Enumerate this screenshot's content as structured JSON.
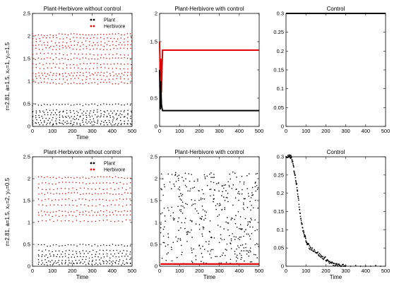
{
  "row_labels": [
    "r=2.81, a=1.5, x₀=1, y₀=1.5",
    "r=2.81, a=1.5, x₀=2, y₀=0.5"
  ],
  "colors": {
    "plant": "#000000",
    "herbivore": "#e00000",
    "axis": "#000000"
  },
  "chart_data": [
    {
      "type": "scatter",
      "title": "Plant-Herbivore without control",
      "xlabel": "Time",
      "xlim": [
        0,
        500
      ],
      "ylim": [
        0,
        2.5
      ],
      "xticks": [
        0,
        100,
        200,
        300,
        400,
        500
      ],
      "yticks": [
        0,
        0.5,
        1,
        1.5,
        2,
        2.5
      ],
      "legend": {
        "position": "top-right",
        "entries": [
          "Plant",
          "Herbivore"
        ]
      },
      "series": [
        {
          "name": "Plant",
          "color": "#000000",
          "pattern": "bands",
          "levels": [
            0.48,
            0.35,
            0.3,
            0.24,
            0.19,
            0.13,
            0.08,
            0.05
          ],
          "x_range": [
            0,
            500
          ]
        },
        {
          "name": "Herbivore",
          "color": "#e00000",
          "pattern": "bands",
          "levels": [
            2.03,
            1.95,
            1.87,
            1.79,
            1.72,
            1.6,
            1.5,
            1.38,
            1.29,
            1.18,
            1.12,
            1.05,
            0.96
          ],
          "x_range": [
            0,
            500
          ]
        }
      ]
    },
    {
      "type": "line",
      "title": "Plant-Herbivore with control",
      "xlabel": "",
      "xlim": [
        0,
        500
      ],
      "ylim": [
        0,
        2
      ],
      "xticks": [
        0,
        100,
        200,
        300,
        400,
        500
      ],
      "yticks": [
        0,
        0.5,
        1,
        1.5,
        2
      ],
      "series": [
        {
          "color": "#e00000",
          "x": [
            0,
            3,
            6,
            9,
            12,
            15,
            500
          ],
          "y": [
            1.5,
            0.9,
            1.2,
            0.6,
            1.0,
            1.35,
            1.35
          ]
        },
        {
          "color": "#000000",
          "x": [
            0,
            3,
            6,
            9,
            12,
            15,
            500
          ],
          "y": [
            1.0,
            0.3,
            0.8,
            0.4,
            0.32,
            0.28,
            0.28
          ]
        }
      ]
    },
    {
      "type": "line",
      "title": "Control",
      "xlabel": "",
      "xlim": [
        0,
        500
      ],
      "ylim": [
        0,
        0.3
      ],
      "xticks": [
        0,
        100,
        200,
        300,
        400,
        500
      ],
      "yticks": [
        0,
        0.05,
        0.1,
        0.15,
        0.2,
        0.25,
        0.3
      ],
      "series": [
        {
          "color": "#000000",
          "x": [
            0,
            500
          ],
          "y": [
            0.3,
            0.3
          ]
        }
      ]
    },
    {
      "type": "scatter",
      "title": "Plant-Herbivore without control",
      "xlabel": "Time",
      "xlim": [
        0,
        500
      ],
      "ylim": [
        0,
        2.5
      ],
      "xticks": [
        0,
        100,
        200,
        300,
        400,
        500
      ],
      "yticks": [
        0,
        0.5,
        1,
        1.5,
        2,
        2.5
      ],
      "legend": {
        "position": "top-right",
        "entries": [
          "Plant",
          "Herbivore"
        ]
      },
      "series": [
        {
          "name": "Plant",
          "color": "#000000",
          "pattern": "bands",
          "levels": [
            0.48,
            0.35,
            0.28,
            0.21,
            0.14,
            0.09,
            0.05
          ],
          "x_range": [
            30,
            500
          ]
        },
        {
          "name": "Herbivore",
          "color": "#e00000",
          "pattern": "bands",
          "levels": [
            2.03,
            1.9,
            1.77,
            1.66,
            1.52,
            1.39,
            1.25,
            1.16,
            1.04
          ],
          "x_range": [
            30,
            500
          ]
        }
      ]
    },
    {
      "type": "scatter",
      "title": "Plant-Herbivore with control",
      "xlabel": "Time",
      "xlim": [
        0,
        500
      ],
      "ylim": [
        0,
        2.5
      ],
      "xticks": [
        0,
        100,
        200,
        300,
        400,
        500
      ],
      "yticks": [
        0,
        0.5,
        1,
        1.5,
        2,
        2.5
      ],
      "series": [
        {
          "color": "#000000",
          "pattern": "cloud",
          "x_range": [
            5,
            500
          ],
          "y_range": [
            0.05,
            2.15
          ]
        },
        {
          "color": "#e00000",
          "pattern": "flat",
          "x": [
            5,
            500
          ],
          "y": [
            0.05,
            0.05
          ]
        }
      ]
    },
    {
      "type": "scatter",
      "title": "Control",
      "xlabel": "Time",
      "xlim": [
        0,
        500
      ],
      "ylim": [
        0,
        0.3
      ],
      "xticks": [
        0,
        100,
        200,
        300,
        400,
        500
      ],
      "yticks": [
        0,
        0.05,
        0.1,
        0.15,
        0.2,
        0.25,
        0.3
      ],
      "series": [
        {
          "color": "#000000",
          "x": [
            0,
            15,
            25,
            35,
            45,
            55,
            65,
            75,
            85,
            95,
            105,
            120,
            140,
            160,
            180,
            200,
            220,
            240,
            260,
            280,
            300,
            500
          ],
          "y": [
            0.3,
            0.3,
            0.3,
            0.28,
            0.25,
            0.22,
            0.17,
            0.13,
            0.1,
            0.08,
            0.065,
            0.05,
            0.045,
            0.035,
            0.025,
            0.02,
            0.01,
            0.005,
            0.002,
            0.001,
            0.0,
            0.0
          ]
        }
      ]
    }
  ]
}
